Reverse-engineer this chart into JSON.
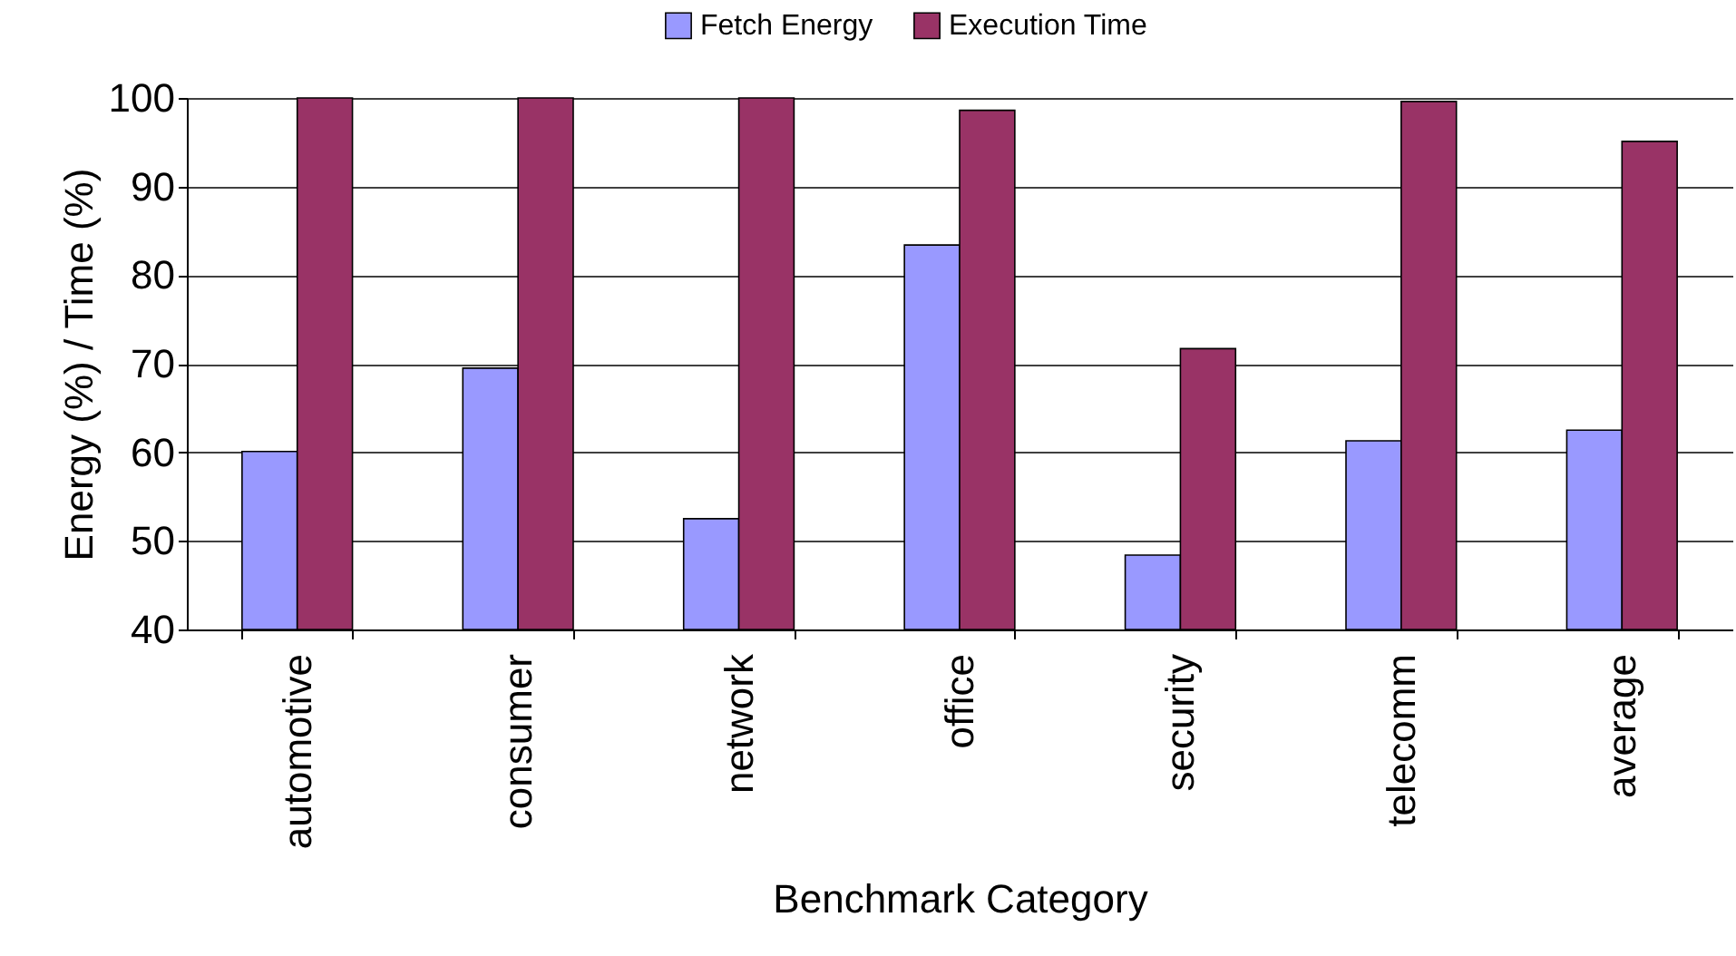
{
  "chart_data": {
    "type": "bar",
    "xlabel": "Benchmark Category",
    "ylabel": "Energy (%) / Time (%)",
    "categories": [
      "automotive",
      "consumer",
      "network",
      "office",
      "security",
      "telecomm",
      "average"
    ],
    "series": [
      {
        "name": "Fetch Energy",
        "color": "#9999ff",
        "values": [
          60.1,
          69.5,
          52.5,
          83.4,
          48.4,
          61.3,
          62.5
        ]
      },
      {
        "name": "Execution Time",
        "color": "#993366",
        "values": [
          100,
          100,
          100,
          98.6,
          71.7,
          99.6,
          95.1
        ]
      }
    ],
    "ylim": [
      40,
      100
    ],
    "yticks": [
      40,
      50,
      60,
      70,
      80,
      90,
      100
    ],
    "grid": "y",
    "legend": "top"
  }
}
